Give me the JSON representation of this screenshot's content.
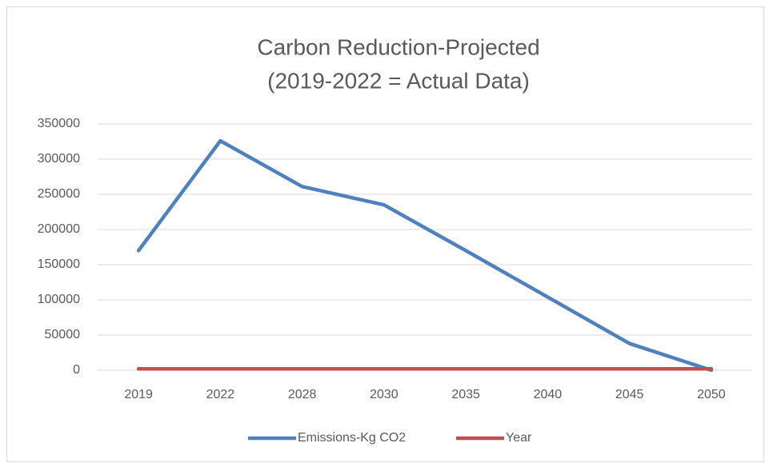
{
  "chart_data": {
    "type": "line",
    "title": [
      "Carbon Reduction-Projected",
      "(2019-2022 = Actual Data)"
    ],
    "categories": [
      "2019",
      "2022",
      "2028",
      "2030",
      "2035",
      "2040",
      "2045",
      "2050"
    ],
    "series": [
      {
        "name": "Emissions-Kg CO2",
        "color": "#4f81bd",
        "values": [
          170000,
          326000,
          261000,
          235000,
          170000,
          104000,
          38000,
          0
        ]
      },
      {
        "name": "Year",
        "color": "#c0504d",
        "values": [
          2019,
          2022,
          2028,
          2030,
          2035,
          2040,
          2045,
          2050
        ]
      }
    ],
    "ylim": [
      0,
      350000
    ],
    "yticks": [
      0,
      50000,
      100000,
      150000,
      200000,
      250000,
      300000,
      350000
    ],
    "grid": true,
    "legend": "bottom"
  }
}
